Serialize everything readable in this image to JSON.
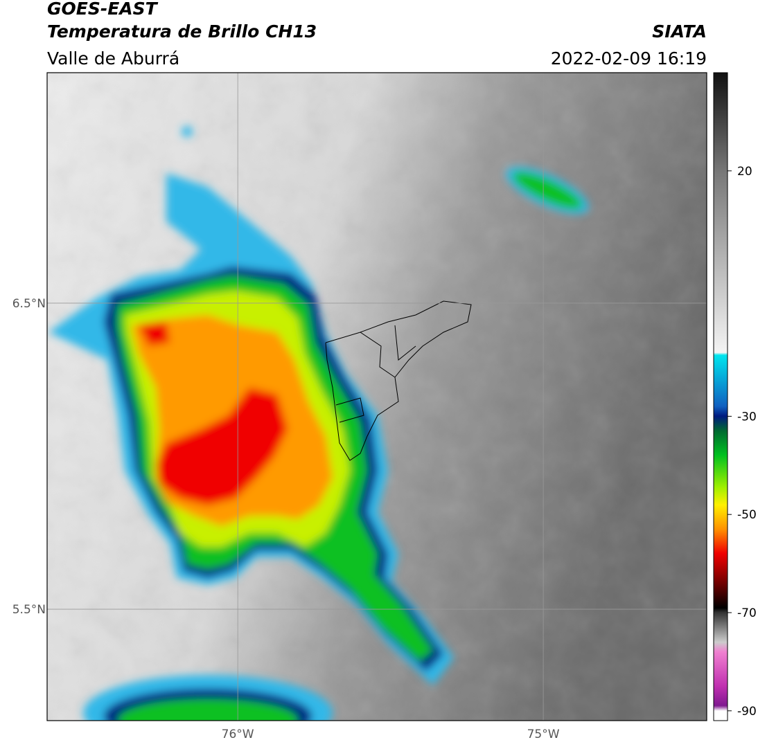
{
  "header": {
    "title": "GOES-EAST",
    "subtitle": "Temperatura de Brillo CH13",
    "region": "Valle de Aburrá",
    "source": "SIATA",
    "datetime": "2022-02-09 16:19"
  },
  "map": {
    "lonlim": [
      -76.624,
      -74.465
    ],
    "latlim": [
      5.136,
      7.253
    ],
    "lon_ticks": [
      {
        "value": -76,
        "label": "76°W"
      },
      {
        "value": -75,
        "label": "75°W"
      }
    ],
    "lat_ticks": [
      {
        "value": 6.5,
        "label": "6.5°N"
      },
      {
        "value": 5.5,
        "label": "5.5°N"
      }
    ]
  },
  "colorbar": {
    "lim": [
      -92,
      40
    ],
    "ticks": [
      20,
      -30,
      -50,
      -70,
      -90
    ]
  }
}
